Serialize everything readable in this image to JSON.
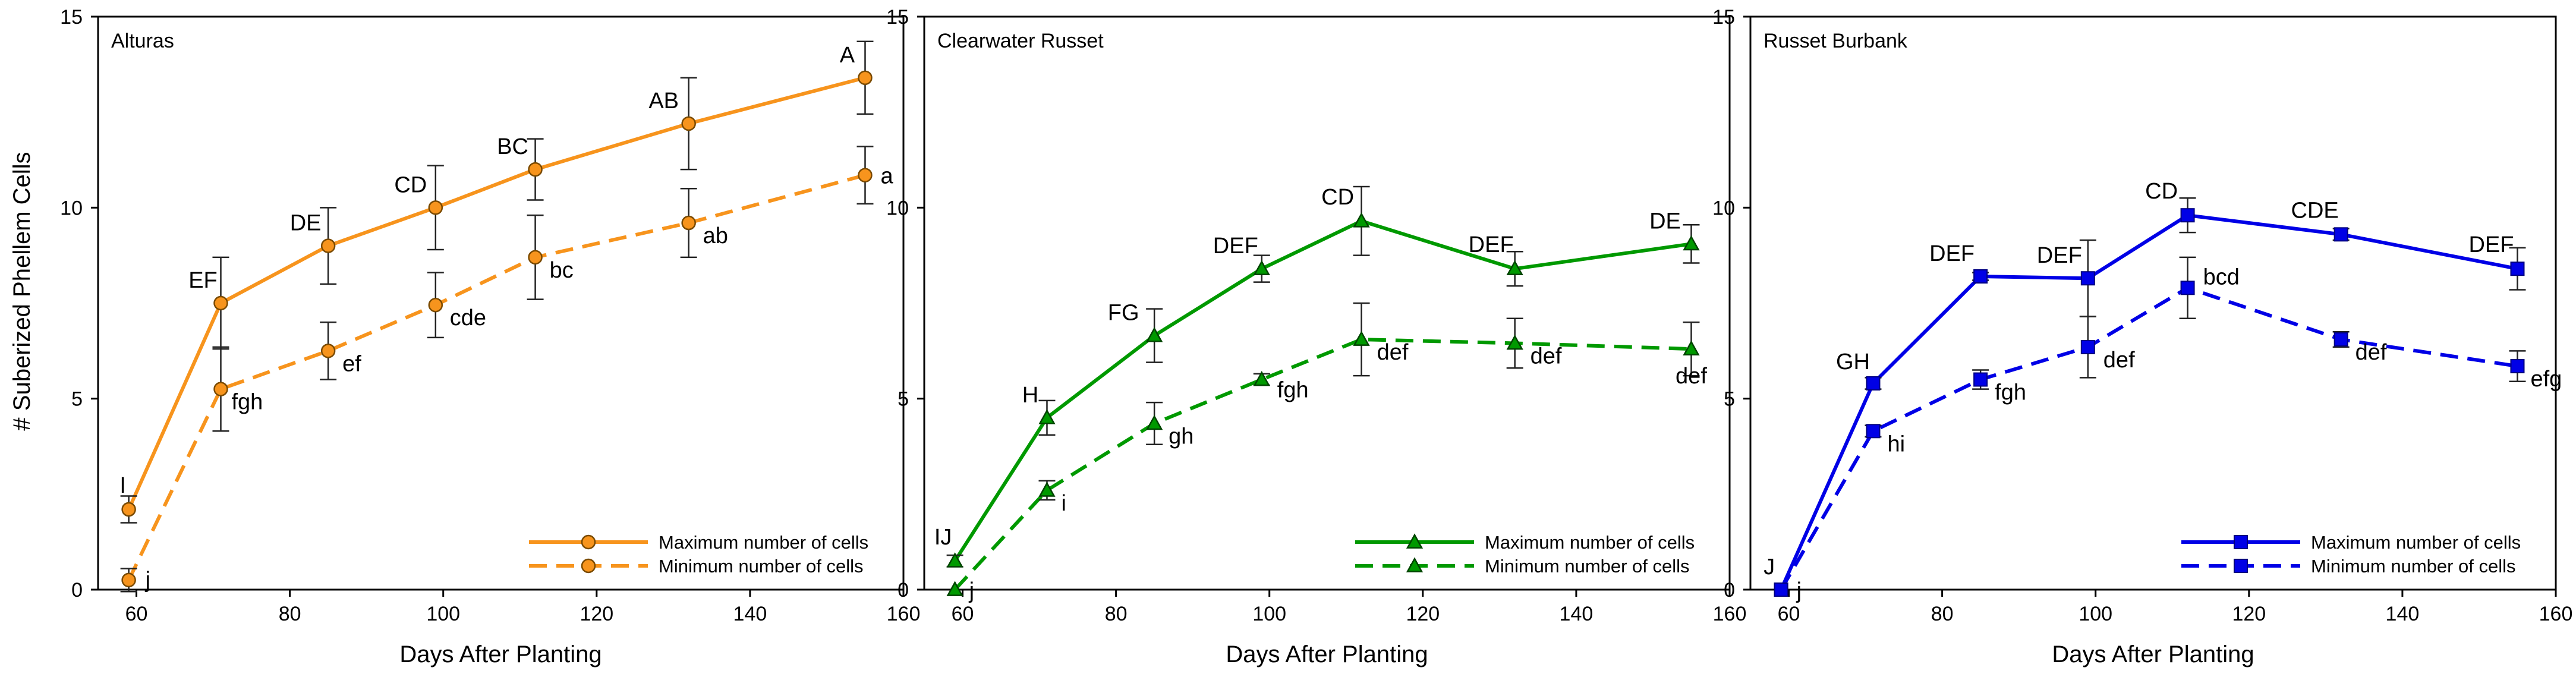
{
  "y_axis_label": "# Suberized Phellem Cells",
  "chart_data": [
    {
      "type": "line",
      "title": "Alturas",
      "xlabel": "Days After Planting",
      "ylabel": "# Suberized Phellem Cells",
      "xlim": [
        55,
        160
      ],
      "ylim": [
        0,
        15
      ],
      "x_ticks": [
        60,
        80,
        100,
        120,
        140,
        160
      ],
      "y_ticks": [
        0,
        5,
        10,
        15
      ],
      "color": "#F7941D",
      "marker": "circle",
      "legend": "bottom-right",
      "series": [
        {
          "name": "Maximum number of cells",
          "style": "solid",
          "x": [
            59,
            71,
            85,
            99,
            112,
            132,
            155
          ],
          "y": [
            2.1,
            7.5,
            9.0,
            10.0,
            11.0,
            12.2,
            13.4
          ],
          "err": [
            0.35,
            1.2,
            1.0,
            1.1,
            0.8,
            1.2,
            0.95
          ],
          "labels": [
            "I",
            "EF",
            "DE",
            "CD",
            "BC",
            "AB",
            "A"
          ]
        },
        {
          "name": "Minimum number of cells",
          "style": "dashed",
          "x": [
            59,
            71,
            85,
            99,
            112,
            132,
            155
          ],
          "y": [
            0.25,
            5.25,
            6.25,
            7.45,
            8.7,
            9.6,
            10.85
          ],
          "err": [
            0.3,
            1.1,
            0.75,
            0.85,
            1.1,
            0.9,
            0.75
          ],
          "labels": [
            "j",
            "fgh",
            "ef",
            "cde",
            "bc",
            "ab",
            "a"
          ]
        }
      ]
    },
    {
      "type": "line",
      "title": "Clearwater Russet",
      "xlabel": "Days After Planting",
      "ylabel": "",
      "xlim": [
        55,
        160
      ],
      "ylim": [
        0,
        15
      ],
      "x_ticks": [
        60,
        80,
        100,
        120,
        140,
        160
      ],
      "y_ticks": [
        0,
        5,
        10,
        15
      ],
      "color": "#009900",
      "marker": "triangle",
      "legend": "bottom-right",
      "series": [
        {
          "name": "Maximum number of cells",
          "style": "solid",
          "x": [
            59,
            71,
            85,
            99,
            112,
            132,
            155
          ],
          "y": [
            0.75,
            4.5,
            6.65,
            8.4,
            9.65,
            8.4,
            9.05
          ],
          "err": [
            0.15,
            0.45,
            0.7,
            0.35,
            0.9,
            0.45,
            0.5
          ],
          "labels": [
            "IJ",
            "H",
            "FG",
            "DEF",
            "CD",
            "DEF",
            "DE"
          ]
        },
        {
          "name": "Minimum number of cells",
          "style": "dashed",
          "x": [
            59,
            71,
            85,
            99,
            112,
            132,
            155
          ],
          "y": [
            0.0,
            2.6,
            4.35,
            5.5,
            6.55,
            6.45,
            6.3
          ],
          "err": [
            0.0,
            0.25,
            0.55,
            0.15,
            0.95,
            0.65,
            0.7
          ],
          "labels": [
            "j",
            "i",
            "gh",
            "fgh",
            "def",
            "def",
            "def"
          ]
        }
      ]
    },
    {
      "type": "line",
      "title": "Russet Burbank",
      "xlabel": "Days After Planting",
      "ylabel": "",
      "xlim": [
        55,
        160
      ],
      "ylim": [
        0,
        15
      ],
      "x_ticks": [
        60,
        80,
        100,
        120,
        140,
        160
      ],
      "y_ticks": [
        0,
        5,
        10,
        15
      ],
      "color": "#0000E6",
      "marker": "square",
      "legend": "bottom-right",
      "series": [
        {
          "name": "Maximum number of cells",
          "style": "solid",
          "x": [
            59,
            71,
            85,
            99,
            112,
            132,
            155
          ],
          "y": [
            0.0,
            5.4,
            8.2,
            8.15,
            9.8,
            9.3,
            8.4
          ],
          "err": [
            0.0,
            0.15,
            0.1,
            1.0,
            0.45,
            0.15,
            0.55
          ],
          "labels": [
            "J",
            "GH",
            "DEF",
            "DEF",
            "CD",
            "CDE",
            "DEF"
          ]
        },
        {
          "name": "Minimum number of cells",
          "style": "dashed",
          "x": [
            59,
            71,
            85,
            99,
            112,
            132,
            155
          ],
          "y": [
            0.0,
            4.15,
            5.5,
            6.35,
            7.9,
            6.55,
            5.85
          ],
          "err": [
            0.0,
            0.15,
            0.25,
            0.8,
            0.8,
            0.2,
            0.4
          ],
          "labels": [
            "j",
            "hi",
            "fgh",
            "def",
            "bcd",
            "def",
            "efg"
          ]
        }
      ]
    }
  ]
}
